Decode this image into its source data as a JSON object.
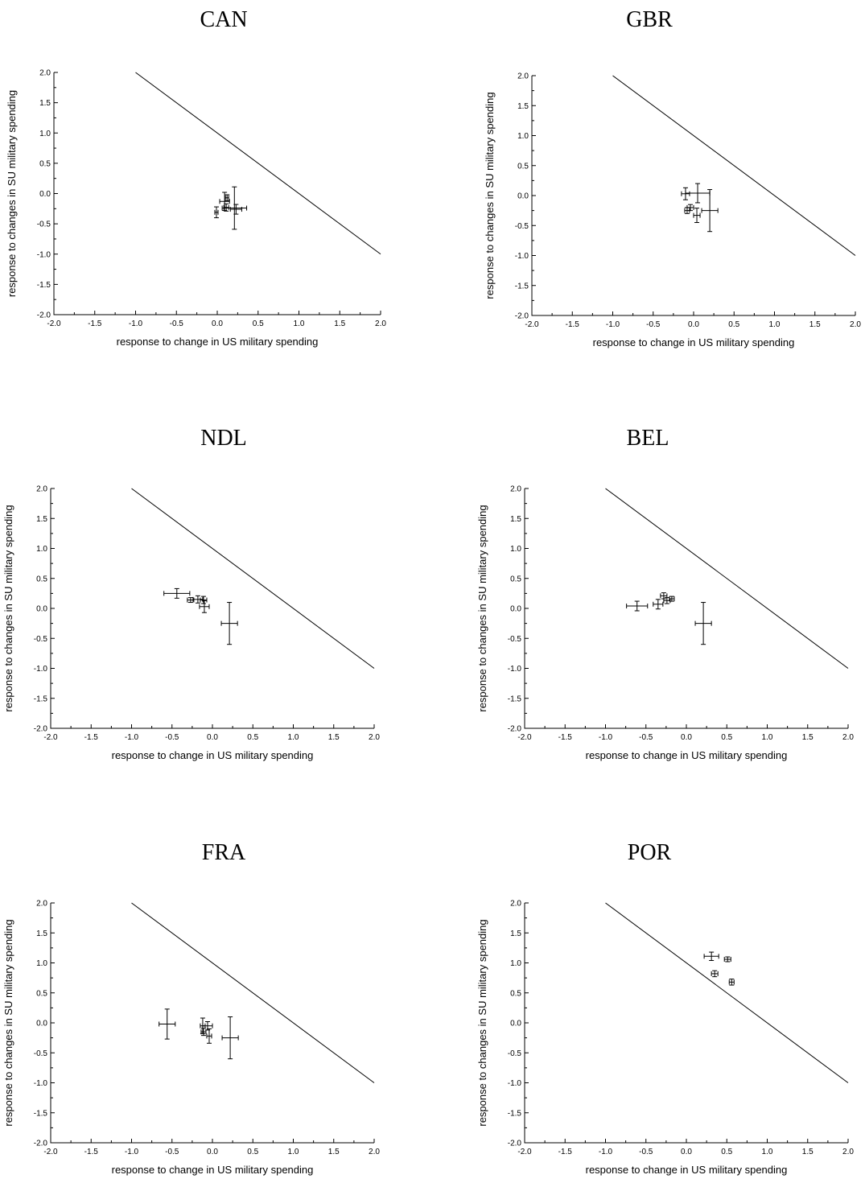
{
  "chart_data": [
    {
      "type": "scatter",
      "title": "CAN",
      "xlabel": "response to change in US military spending",
      "ylabel": "response to changes in SU military spending",
      "xlim": [
        -2.0,
        2.0
      ],
      "ylim": [
        -2.0,
        2.0
      ],
      "xticks": [
        "-2.0",
        "-1.5",
        "-1.0",
        "-0.5",
        "0.0",
        "0.5",
        "1.0",
        "1.5",
        "2.0"
      ],
      "yticks": [
        "-2.0",
        "-1.5",
        "-1.0",
        "-0.5",
        "0.0",
        "0.5",
        "1.0",
        "1.5",
        "2.0"
      ],
      "reference_line": {
        "x": [
          -1.0,
          2.0
        ],
        "y": [
          2.0,
          -1.0
        ]
      },
      "points": [
        {
          "x": -0.01,
          "y": -0.31,
          "xerr": 0.02,
          "yerr": 0.09
        },
        {
          "x": 0.09,
          "y": -0.13,
          "xerr": 0.06,
          "yerr": 0.15
        },
        {
          "x": 0.11,
          "y": -0.23,
          "xerr": 0.03,
          "yerr": 0.06
        },
        {
          "x": 0.12,
          "y": -0.07,
          "xerr": 0.02,
          "yerr": 0.05
        },
        {
          "x": 0.21,
          "y": -0.24,
          "xerr": 0.15,
          "yerr": 0.35
        },
        {
          "x": 0.23,
          "y": -0.26,
          "xerr": 0.07,
          "yerr": 0.08
        }
      ]
    },
    {
      "type": "scatter",
      "title": "GBR",
      "xlabel": "response to change in US military spending",
      "ylabel": "response to changes in SU military spending",
      "xlim": [
        -2.0,
        2.0
      ],
      "ylim": [
        -2.0,
        2.0
      ],
      "xticks": [
        "-2.0",
        "-1.5",
        "-1.0",
        "-0.5",
        "0.0",
        "0.5",
        "1.0",
        "1.5",
        "2.0"
      ],
      "yticks": [
        "-2.0",
        "-1.5",
        "-1.0",
        "-0.5",
        "0.0",
        "0.5",
        "1.0",
        "1.5",
        "2.0"
      ],
      "reference_line": {
        "x": [
          -1.0,
          2.0
        ],
        "y": [
          2.0,
          -1.0
        ]
      },
      "points": [
        {
          "x": -0.1,
          "y": 0.03,
          "xerr": 0.05,
          "yerr": 0.1
        },
        {
          "x": -0.08,
          "y": -0.25,
          "xerr": 0.03,
          "yerr": 0.05
        },
        {
          "x": -0.04,
          "y": -0.2,
          "xerr": 0.04,
          "yerr": 0.05
        },
        {
          "x": 0.05,
          "y": 0.04,
          "xerr": 0.15,
          "yerr": 0.16
        },
        {
          "x": 0.04,
          "y": -0.33,
          "xerr": 0.04,
          "yerr": 0.12
        },
        {
          "x": 0.2,
          "y": -0.25,
          "xerr": 0.1,
          "yerr": 0.35
        }
      ]
    },
    {
      "type": "scatter",
      "title": "NDL",
      "xlabel": "response to change in US military spending",
      "ylabel": "response to changes in SU military spending",
      "xlim": [
        -2.0,
        2.0
      ],
      "ylim": [
        -2.0,
        2.0
      ],
      "xticks": [
        "-2.0",
        "-1.5",
        "-1.0",
        "-0.5",
        "0.0",
        "0.5",
        "1.0",
        "1.5",
        "2.0"
      ],
      "yticks": [
        "-2.0",
        "-1.5",
        "-1.0",
        "-0.5",
        "0.0",
        "0.5",
        "1.0",
        "1.5",
        "2.0"
      ],
      "reference_line": {
        "x": [
          -1.0,
          2.0
        ],
        "y": [
          2.0,
          -1.0
        ]
      },
      "points": [
        {
          "x": -0.44,
          "y": 0.25,
          "xerr": 0.16,
          "yerr": 0.08
        },
        {
          "x": -0.27,
          "y": 0.14,
          "xerr": 0.04,
          "yerr": 0.04
        },
        {
          "x": -0.18,
          "y": 0.15,
          "xerr": 0.06,
          "yerr": 0.06
        },
        {
          "x": -0.11,
          "y": 0.14,
          "xerr": 0.04,
          "yerr": 0.06
        },
        {
          "x": -0.1,
          "y": 0.03,
          "xerr": 0.06,
          "yerr": 0.1
        },
        {
          "x": 0.21,
          "y": -0.25,
          "xerr": 0.1,
          "yerr": 0.35
        }
      ]
    },
    {
      "type": "scatter",
      "title": "BEL",
      "xlabel": "response to change in US military spending",
      "ylabel": "response to changes in SU military spending",
      "xlim": [
        -2.0,
        2.0
      ],
      "ylim": [
        -2.0,
        2.0
      ],
      "xticks": [
        "-2.0",
        "-1.5",
        "-1.0",
        "-0.5",
        "0.0",
        "0.5",
        "1.0",
        "1.5",
        "2.0"
      ],
      "yticks": [
        "-2.0",
        "-1.5",
        "-1.0",
        "-0.5",
        "0.0",
        "0.5",
        "1.0",
        "1.5",
        "2.0"
      ],
      "reference_line": {
        "x": [
          -1.0,
          2.0
        ],
        "y": [
          2.0,
          -1.0
        ]
      },
      "points": [
        {
          "x": -0.61,
          "y": 0.04,
          "xerr": 0.13,
          "yerr": 0.08
        },
        {
          "x": -0.35,
          "y": 0.07,
          "xerr": 0.06,
          "yerr": 0.08
        },
        {
          "x": -0.28,
          "y": 0.21,
          "xerr": 0.04,
          "yerr": 0.05
        },
        {
          "x": -0.24,
          "y": 0.13,
          "xerr": 0.04,
          "yerr": 0.05
        },
        {
          "x": -0.18,
          "y": 0.16,
          "xerr": 0.03,
          "yerr": 0.04
        },
        {
          "x": 0.21,
          "y": -0.25,
          "xerr": 0.1,
          "yerr": 0.35
        }
      ]
    },
    {
      "type": "scatter",
      "title": "FRA",
      "xlabel": "response to change in US military spending",
      "ylabel": "response to changes in SU military spending",
      "xlim": [
        -2.0,
        2.0
      ],
      "ylim": [
        -2.0,
        2.0
      ],
      "xticks": [
        "-2.0",
        "-1.5",
        "-1.0",
        "-0.5",
        "0.0",
        "0.5",
        "1.0",
        "1.5",
        "2.0"
      ],
      "yticks": [
        "-2.0",
        "-1.5",
        "-1.0",
        "-0.5",
        "0.0",
        "0.5",
        "1.0",
        "1.5",
        "2.0"
      ],
      "reference_line": {
        "x": [
          -1.0,
          2.0
        ],
        "y": [
          2.0,
          -1.0
        ]
      },
      "points": [
        {
          "x": -0.56,
          "y": -0.02,
          "xerr": 0.1,
          "yerr": 0.25
        },
        {
          "x": -0.12,
          "y": -0.05,
          "xerr": 0.03,
          "yerr": 0.13
        },
        {
          "x": -0.11,
          "y": -0.15,
          "xerr": 0.03,
          "yerr": 0.06
        },
        {
          "x": -0.06,
          "y": -0.05,
          "xerr": 0.06,
          "yerr": 0.07
        },
        {
          "x": -0.04,
          "y": -0.22,
          "xerr": 0.03,
          "yerr": 0.12
        },
        {
          "x": 0.22,
          "y": -0.25,
          "xerr": 0.1,
          "yerr": 0.35
        }
      ]
    },
    {
      "type": "scatter",
      "title": "POR",
      "xlabel": "response to change in US military spending",
      "ylabel": "response to changes in SU military spending",
      "xlim": [
        -2.0,
        2.0
      ],
      "ylim": [
        -2.0,
        2.0
      ],
      "xticks": [
        "-2.0",
        "-1.5",
        "-1.0",
        "-0.5",
        "0.0",
        "0.5",
        "1.0",
        "1.5",
        "2.0"
      ],
      "yticks": [
        "-2.0",
        "-1.5",
        "-1.0",
        "-0.5",
        "0.0",
        "0.5",
        "1.0",
        "1.5",
        "2.0"
      ],
      "reference_line": {
        "x": [
          -1.0,
          2.0
        ],
        "y": [
          2.0,
          -1.0
        ]
      },
      "points": [
        {
          "x": 0.31,
          "y": 1.11,
          "xerr": 0.09,
          "yerr": 0.07
        },
        {
          "x": 0.51,
          "y": 1.06,
          "xerr": 0.04,
          "yerr": 0.04
        },
        {
          "x": 0.35,
          "y": 0.82,
          "xerr": 0.04,
          "yerr": 0.05
        },
        {
          "x": 0.56,
          "y": 0.68,
          "xerr": 0.03,
          "yerr": 0.05
        }
      ]
    }
  ]
}
